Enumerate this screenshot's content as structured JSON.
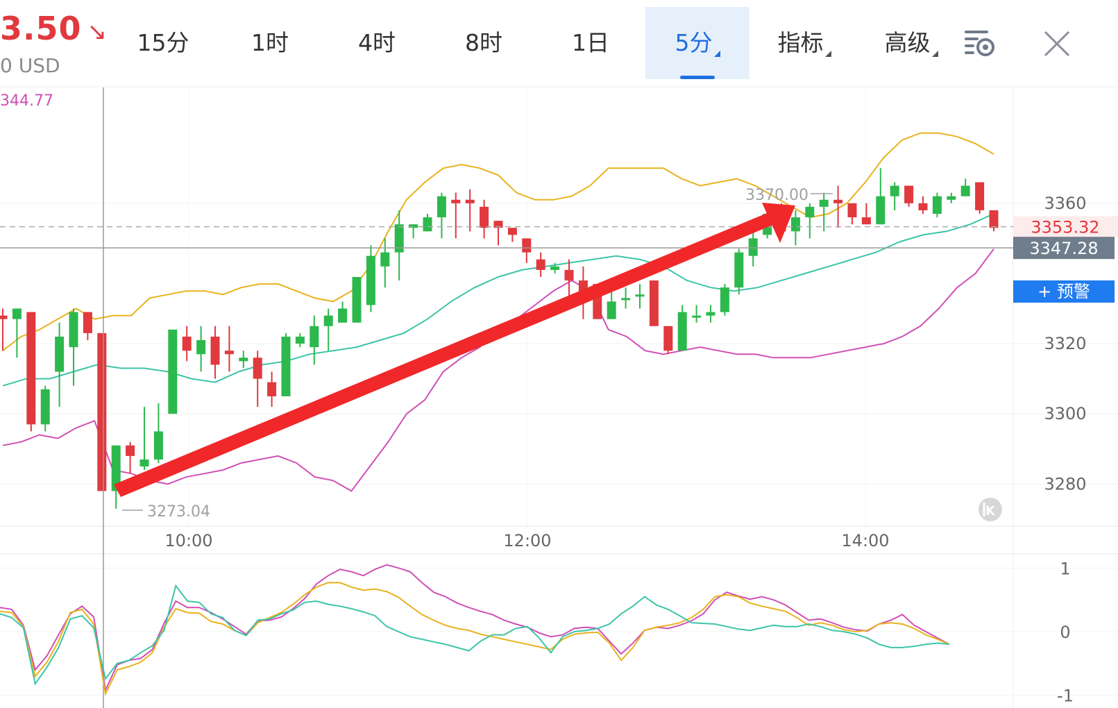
{
  "header": {
    "price": "3.50",
    "price_arrow": "↘",
    "price_sub": "0 USD",
    "indicator_value": "344.77"
  },
  "tabs": [
    {
      "label": "15分",
      "active": false,
      "dropdown": false
    },
    {
      "label": "1时",
      "active": false,
      "dropdown": false
    },
    {
      "label": "4时",
      "active": false,
      "dropdown": false
    },
    {
      "label": "8时",
      "active": false,
      "dropdown": false
    },
    {
      "label": "1日",
      "active": false,
      "dropdown": false
    },
    {
      "label": "5分",
      "active": true,
      "dropdown": true
    },
    {
      "label": "指标",
      "active": false,
      "dropdown": true
    },
    {
      "label": "高级",
      "active": false,
      "dropdown": true
    }
  ],
  "icons": {
    "settings": "chart-settings-icon",
    "close": "close-icon",
    "scroll_back": "scroll-to-latest-icon"
  },
  "colors": {
    "up": "#2db84d",
    "down": "#e0393e",
    "boll_upper": "#e8b21c",
    "boll_mid": "#3cc4a8",
    "boll_lower": "#d04fb6",
    "accent": "#1f6fe0"
  },
  "chart_data": [
    {
      "type": "candlestick",
      "name": "main",
      "x_ticks": [
        "10:00",
        "12:00",
        "14:00"
      ],
      "y_ticks": [
        3280,
        3300,
        3320,
        3360
      ],
      "ylim": [
        3268,
        3393
      ],
      "grid": true,
      "max_marker": "3370.00",
      "min_marker": "3273.04",
      "last_price_label": "3353.32",
      "crosshair_price_label": "3347.28",
      "alert_button_label": "+ 预警",
      "candles": [
        [
          3328,
          3330,
          3318,
          3327
        ],
        [
          3327,
          3330,
          3316,
          3330
        ],
        [
          3329,
          3329,
          3295,
          3297
        ],
        [
          3297,
          3308,
          3295,
          3307
        ],
        [
          3312,
          3326,
          3302,
          3322
        ],
        [
          3319,
          3330,
          3308,
          3329
        ],
        [
          3329,
          3329,
          3321,
          3323
        ],
        [
          3323,
          3323,
          3278,
          3278
        ],
        [
          3278,
          3290,
          3273,
          3291
        ],
        [
          3291,
          3292,
          3283,
          3288
        ],
        [
          3285,
          3302,
          3284,
          3287
        ],
        [
          3287,
          3303,
          3286,
          3295
        ],
        [
          3300,
          3324,
          3300,
          3324
        ],
        [
          3322,
          3325,
          3315,
          3318
        ],
        [
          3317,
          3325,
          3312,
          3321
        ],
        [
          3322,
          3325,
          3310,
          3314
        ],
        [
          3318,
          3325,
          3312,
          3317
        ],
        [
          3315,
          3318,
          3313,
          3316
        ],
        [
          3316,
          3318,
          3302,
          3310
        ],
        [
          3309,
          3312,
          3302,
          3305
        ],
        [
          3305,
          3323,
          3305,
          3322
        ],
        [
          3320,
          3323,
          3319,
          3322
        ],
        [
          3319,
          3328,
          3314,
          3325
        ],
        [
          3325,
          3330,
          3318,
          3328
        ],
        [
          3326,
          3332,
          3326,
          3330
        ],
        [
          3326,
          3338,
          3326,
          3339
        ],
        [
          3331,
          3348,
          3329,
          3345
        ],
        [
          3342,
          3350,
          3336,
          3346
        ],
        [
          3346,
          3358,
          3338,
          3354
        ],
        [
          3353,
          3354,
          3350,
          3354
        ],
        [
          3352,
          3357,
          3352,
          3356
        ],
        [
          3356,
          3363,
          3350,
          3362
        ],
        [
          3361,
          3363,
          3350,
          3360
        ],
        [
          3361,
          3364,
          3352,
          3360
        ],
        [
          3359,
          3361,
          3350,
          3353
        ],
        [
          3355,
          3355,
          3348,
          3353
        ],
        [
          3353,
          3353,
          3349,
          3351
        ],
        [
          3350,
          3350,
          3343,
          3346
        ],
        [
          3344,
          3346,
          3339,
          3341
        ],
        [
          3341,
          3343,
          3340,
          3342
        ],
        [
          3341,
          3344,
          3330,
          3338
        ],
        [
          3338,
          3342,
          3327,
          3333
        ],
        [
          3337,
          3337,
          3327,
          3327
        ],
        [
          3327,
          3336,
          3327,
          3332
        ],
        [
          3333,
          3336,
          3330,
          3333
        ],
        [
          3334,
          3337,
          3330,
          3334
        ],
        [
          3338,
          3338,
          3325,
          3325
        ],
        [
          3325,
          3325,
          3317,
          3318
        ],
        [
          3318,
          3331,
          3318,
          3329
        ],
        [
          3328,
          3331,
          3326,
          3328
        ],
        [
          3328,
          3331,
          3326,
          3329
        ],
        [
          3329,
          3337,
          3328,
          3336
        ],
        [
          3336,
          3347,
          3334,
          3346
        ],
        [
          3345,
          3352,
          3342,
          3350
        ],
        [
          3351,
          3359,
          3350,
          3357
        ],
        [
          3355,
          3360,
          3350,
          3352
        ],
        [
          3352,
          3358,
          3348,
          3356
        ],
        [
          3356,
          3360,
          3350,
          3359
        ],
        [
          3359,
          3363,
          3352,
          3361
        ],
        [
          3361,
          3365,
          3353,
          3360
        ],
        [
          3360,
          3360,
          3354,
          3356
        ],
        [
          3356,
          3360,
          3354,
          3354
        ],
        [
          3354,
          3370,
          3354,
          3362
        ],
        [
          3362,
          3366,
          3358,
          3365
        ],
        [
          3365,
          3365,
          3359,
          3360
        ],
        [
          3360,
          3362,
          3357,
          3358
        ],
        [
          3357,
          3363,
          3356,
          3362
        ],
        [
          3361,
          3363,
          3360,
          3362
        ],
        [
          3362,
          3367,
          3362,
          3365
        ],
        [
          3366,
          3366,
          3357,
          3358
        ],
        [
          3358,
          3358,
          3352,
          3353
        ]
      ],
      "bollinger": {
        "upper": [
          3318,
          3322,
          3324,
          3327,
          3330,
          3327,
          3328,
          3328,
          3333,
          3334,
          3335,
          3335,
          3334,
          3336,
          3337,
          3337,
          3335,
          3333,
          3332,
          3335,
          3342,
          3352,
          3361,
          3366,
          3370,
          3371,
          3370,
          3368,
          3363,
          3361,
          3361,
          3362,
          3365,
          3370,
          3370,
          3370,
          3370,
          3367,
          3365,
          3366,
          3367,
          3365,
          3362,
          3359,
          3356,
          3357,
          3360,
          3366,
          3373,
          3378,
          3380,
          3380,
          3379,
          3377,
          3374
        ],
        "middle": [
          3308,
          3310,
          3310,
          3312,
          3314,
          3313,
          3313,
          3312,
          3310,
          3309,
          3312,
          3314,
          3315,
          3317,
          3318,
          3319,
          3321,
          3323,
          3327,
          3332,
          3336,
          3339,
          3341,
          3342,
          3343,
          3344,
          3345,
          3344,
          3342,
          3338,
          3336,
          3335,
          3336,
          3338,
          3340,
          3342,
          3344,
          3346,
          3349,
          3351,
          3352,
          3354,
          3357
        ],
        "lower": [
          3291,
          3292,
          3294,
          3293,
          3296,
          3298,
          3284,
          3283,
          3281,
          3280,
          3282,
          3283,
          3284,
          3286,
          3287,
          3288,
          3286,
          3282,
          3281,
          3278,
          3285,
          3292,
          3300,
          3304,
          3312,
          3316,
          3319,
          3325,
          3327,
          3331,
          3335,
          3338,
          3335,
          3324,
          3322,
          3318,
          3317,
          3318,
          3319,
          3318,
          3317,
          3317,
          3316,
          3316,
          3316,
          3317,
          3318,
          3319,
          3320,
          3322,
          3325,
          3330,
          3336,
          3340,
          3347
        ]
      }
    },
    {
      "type": "line",
      "name": "oscillator",
      "y_ticks": [
        1,
        0,
        -1
      ],
      "ylim": [
        -1.2,
        1.2
      ],
      "series": [
        {
          "values": [
            0.38,
            0.35,
            0.1,
            -0.6,
            -0.38,
            -0.05,
            0.28,
            0.4,
            0.23,
            -0.92,
            -0.52,
            -0.45,
            -0.42,
            -0.28,
            0.13,
            0.48,
            0.38,
            0.38,
            0.3,
            0.2,
            0.08,
            -0.04,
            0.17,
            0.18,
            0.23,
            0.36,
            0.52,
            0.75,
            0.88,
            0.98,
            0.94,
            0.88,
            0.98,
            1.05,
            1.0,
            0.94,
            0.77,
            0.62,
            0.55,
            0.45,
            0.38,
            0.32,
            0.27,
            0.18,
            0.12,
            0.07,
            -0.02,
            -0.08,
            -0.05,
            0.05,
            0.07,
            0.05,
            -0.15,
            -0.35,
            -0.18,
            0.02,
            0.07,
            0.05,
            0.1,
            0.17,
            0.28,
            0.5,
            0.62,
            0.56,
            0.51,
            0.55,
            0.5,
            0.42,
            0.3,
            0.18,
            0.2,
            0.14,
            0.07,
            0.03,
            0.01,
            0.12,
            0.18,
            0.27,
            0.1,
            0.0,
            -0.1,
            -0.2
          ]
        },
        {
          "values": [
            0.32,
            0.3,
            0.08,
            -0.7,
            -0.48,
            -0.15,
            0.3,
            0.35,
            0.12,
            -0.98,
            -0.6,
            -0.55,
            -0.48,
            -0.33,
            0.07,
            0.36,
            0.3,
            0.29,
            0.16,
            0.12,
            0.02,
            -0.06,
            0.14,
            0.22,
            0.3,
            0.43,
            0.58,
            0.7,
            0.77,
            0.77,
            0.7,
            0.65,
            0.67,
            0.63,
            0.54,
            0.4,
            0.27,
            0.18,
            0.1,
            0.05,
            0.02,
            -0.04,
            -0.08,
            -0.12,
            -0.16,
            -0.2,
            -0.24,
            -0.28,
            -0.12,
            -0.04,
            -0.02,
            -0.01,
            -0.18,
            -0.45,
            -0.25,
            0.02,
            0.07,
            0.1,
            0.14,
            0.22,
            0.35,
            0.55,
            0.58,
            0.55,
            0.45,
            0.4,
            0.36,
            0.32,
            0.22,
            0.1,
            0.14,
            0.1,
            0.03,
            0.0,
            0.02,
            0.12,
            0.14,
            0.12,
            0.05,
            -0.05,
            -0.12,
            -0.2
          ]
        },
        {
          "values": [
            0.28,
            0.22,
            0.06,
            -0.82,
            -0.56,
            -0.25,
            0.2,
            0.25,
            0.06,
            -0.74,
            -0.5,
            -0.45,
            -0.33,
            -0.22,
            0.02,
            0.72,
            0.48,
            0.46,
            0.28,
            0.22,
            0.02,
            -0.06,
            0.18,
            0.2,
            0.28,
            0.34,
            0.46,
            0.48,
            0.43,
            0.4,
            0.36,
            0.31,
            0.25,
            0.08,
            0.0,
            -0.08,
            -0.12,
            -0.16,
            -0.2,
            -0.25,
            -0.3,
            -0.15,
            -0.05,
            -0.05,
            0.05,
            0.08,
            -0.1,
            -0.33,
            -0.08,
            0.0,
            0.02,
            0.05,
            0.12,
            0.28,
            0.4,
            0.55,
            0.42,
            0.35,
            0.25,
            0.14,
            0.13,
            0.12,
            0.08,
            0.04,
            0.02,
            0.06,
            0.1,
            0.08,
            0.08,
            0.12,
            0.08,
            0.02,
            0.0,
            -0.04,
            -0.1,
            -0.2,
            -0.25,
            -0.25,
            -0.23,
            -0.2,
            -0.18,
            -0.2
          ]
        }
      ]
    }
  ]
}
